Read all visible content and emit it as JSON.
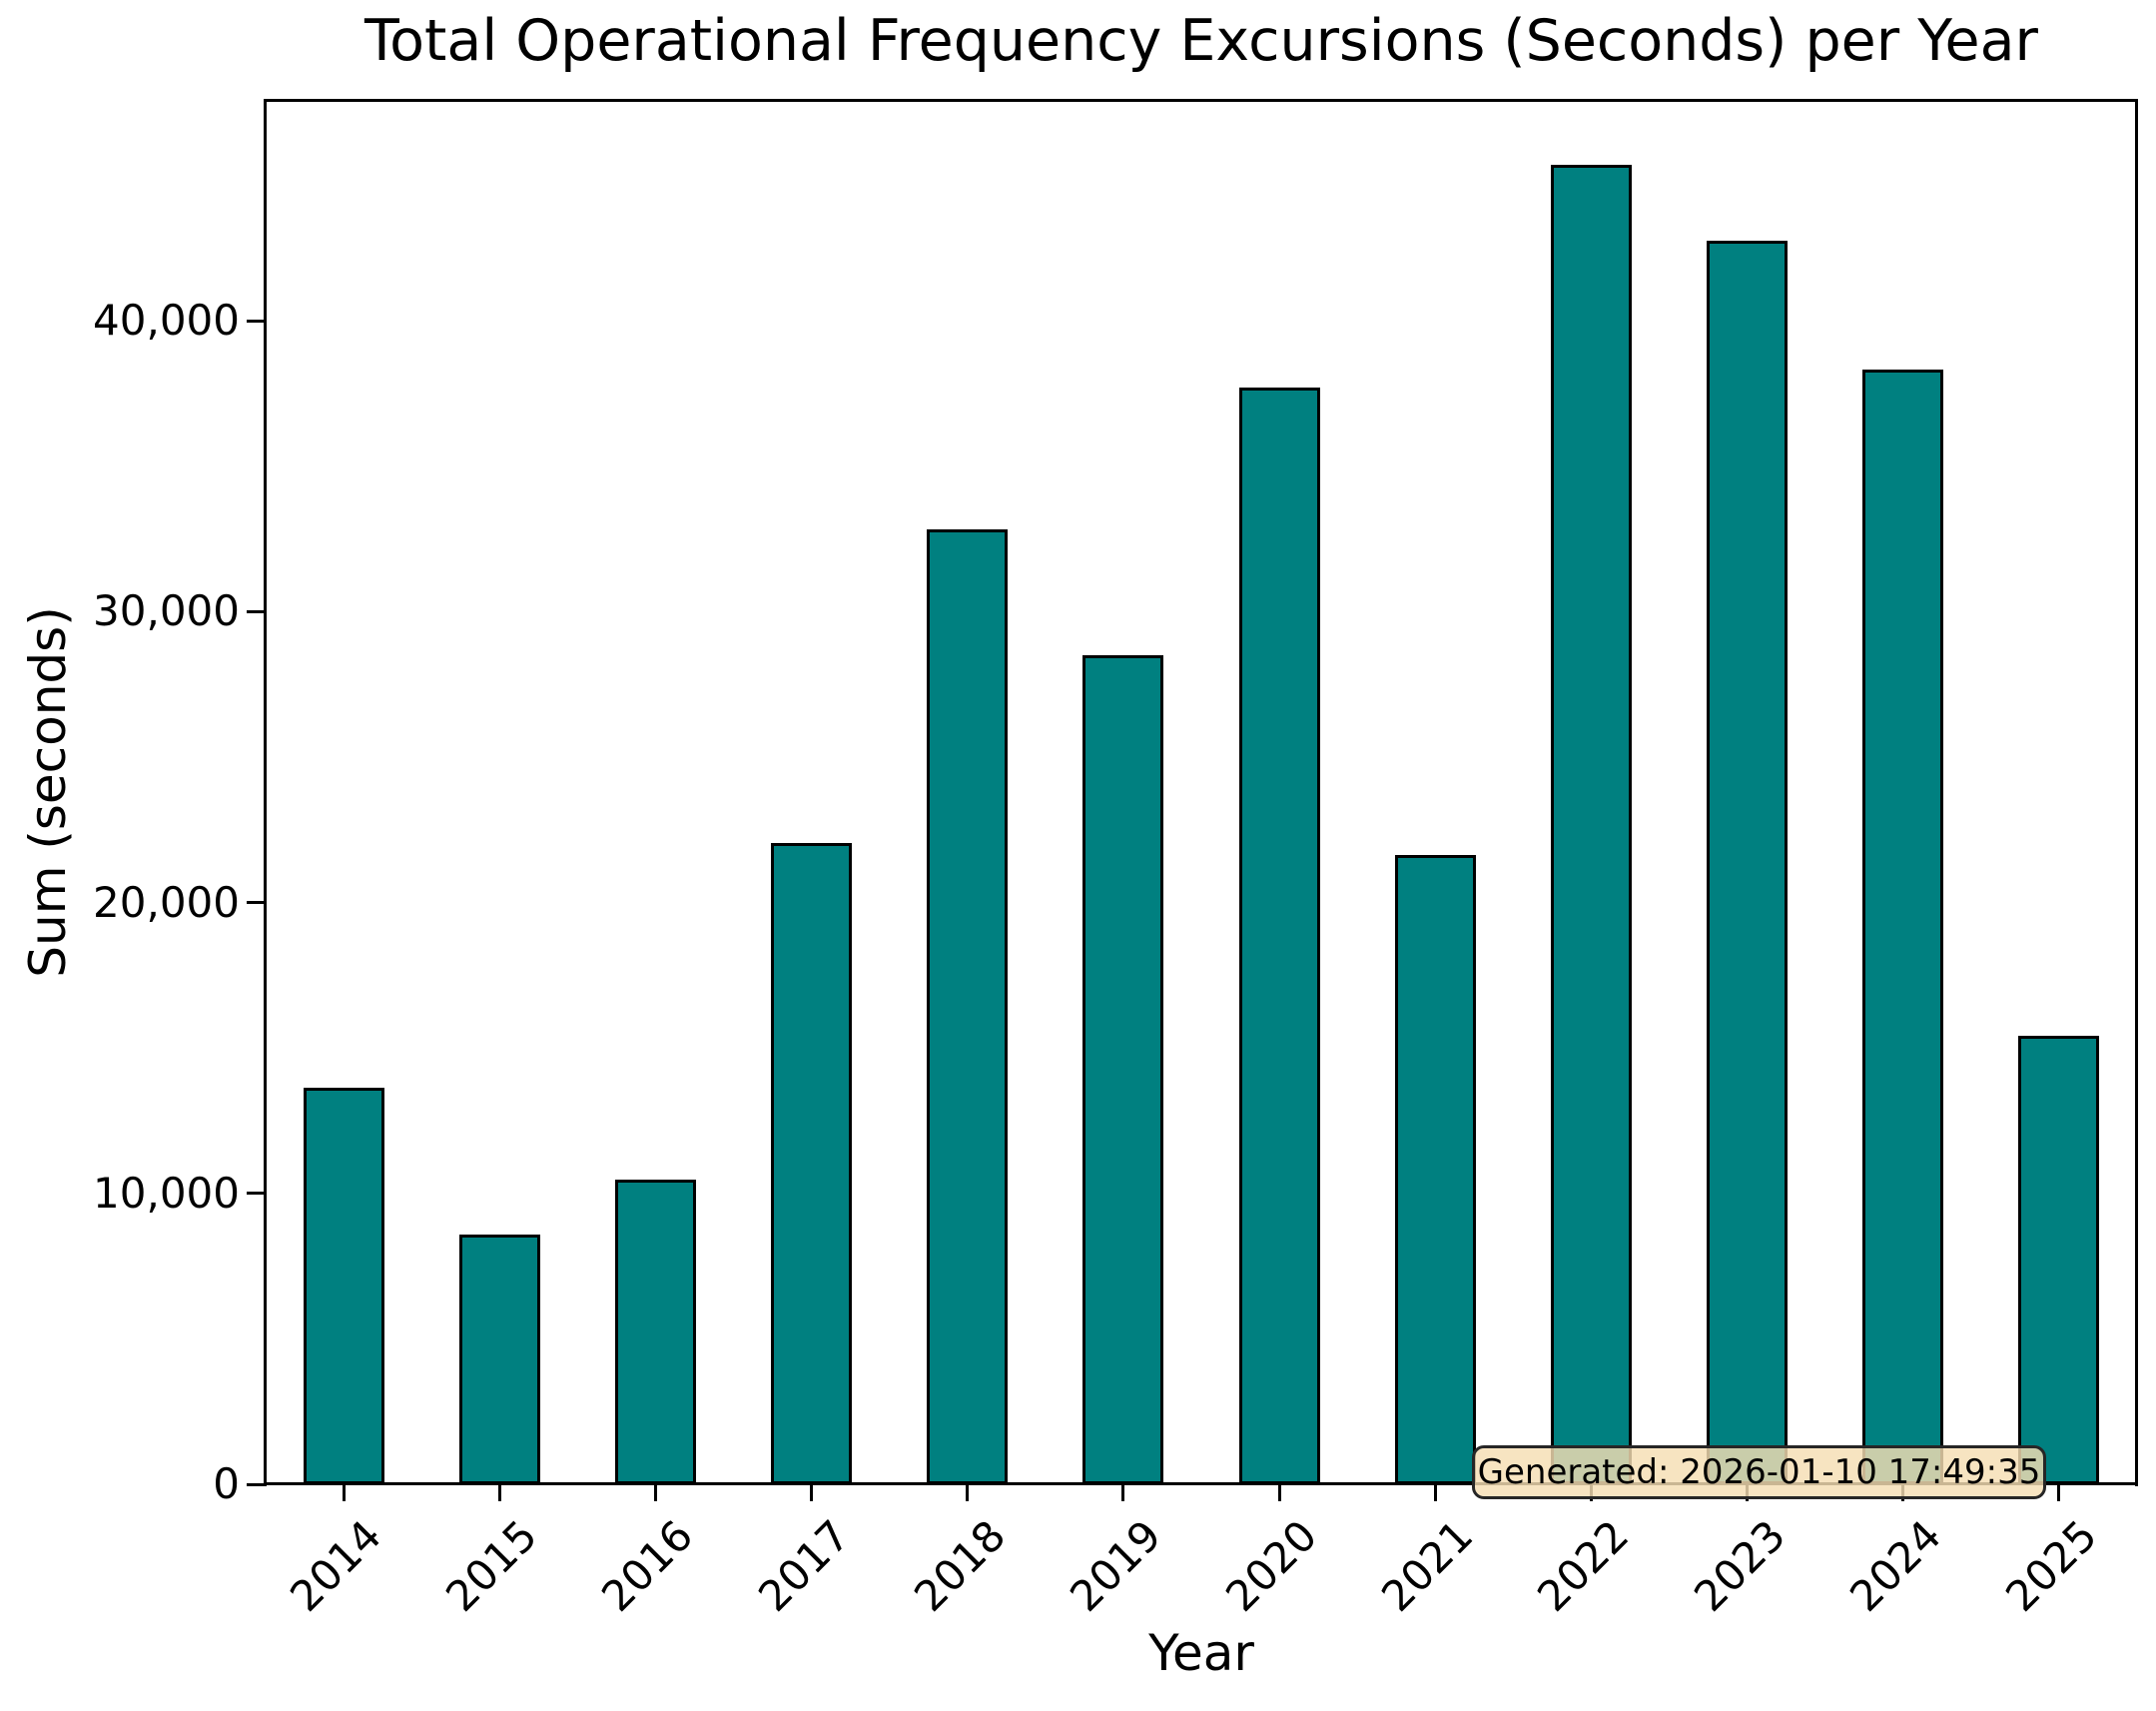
{
  "chart_data": {
    "type": "bar",
    "title": "Total Operational Frequency Excursions (Seconds) per Year",
    "xlabel": "Year",
    "ylabel": "Sum (seconds)",
    "categories": [
      "2014",
      "2015",
      "2016",
      "2017",
      "2018",
      "2019",
      "2020",
      "2021",
      "2022",
      "2023",
      "2024",
      "2025"
    ],
    "values": [
      13640,
      8590,
      10480,
      22060,
      32820,
      28520,
      37700,
      21620,
      45360,
      42750,
      38320,
      15430
    ],
    "ylim": [
      0,
      47600
    ],
    "yticks": [
      {
        "value": 0,
        "label": "0"
      },
      {
        "value": 10000,
        "label": "10,000"
      },
      {
        "value": 20000,
        "label": "20,000"
      },
      {
        "value": 30000,
        "label": "30,000"
      },
      {
        "value": 40000,
        "label": "40,000"
      }
    ],
    "grid": false,
    "legend": false,
    "xtick_rotation_deg": 45,
    "bar_color": "#008080",
    "bar_edge_color": "#000000",
    "annotation": {
      "text": "Generated: 2026-01-10 17:49:35",
      "background": "#f5deb3",
      "border_color": "#262626",
      "text_color": "#000000"
    }
  }
}
